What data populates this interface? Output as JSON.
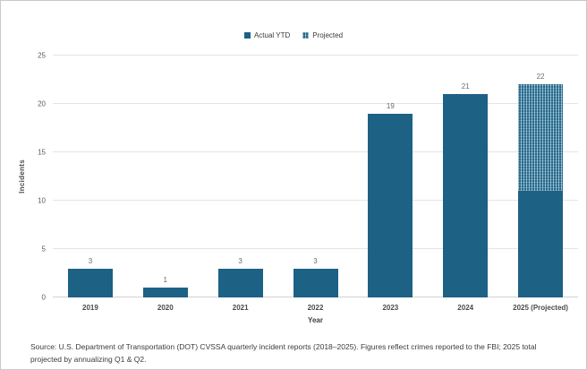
{
  "chart_data": {
    "type": "bar",
    "title": "",
    "xlabel": "Year",
    "ylabel": "Incidents",
    "ylim": [
      0,
      25
    ],
    "yticks": [
      0,
      5,
      10,
      15,
      20,
      25
    ],
    "grid": true,
    "legend_position": "top",
    "categories": [
      "2019",
      "2020",
      "2021",
      "2022",
      "2023",
      "2024",
      "2025 (Projected)"
    ],
    "series": [
      {
        "name": "Actual YTD",
        "style": "solid",
        "values": [
          3,
          1,
          3,
          3,
          19,
          21,
          11
        ]
      },
      {
        "name": "Projected",
        "style": "hatched",
        "values": [
          0,
          0,
          0,
          0,
          0,
          0,
          11
        ]
      }
    ],
    "bar_total_labels": [
      "3",
      "1",
      "3",
      "3",
      "19",
      "21",
      "22"
    ],
    "legend": [
      {
        "label": "Actual YTD",
        "style": "solid"
      },
      {
        "label": "Projected",
        "style": "hatched"
      }
    ],
    "colors": {
      "actual": "#1d6185",
      "projected_base": "#22688c",
      "gridline": "#e4e4e4",
      "axis_line": "#d2d2d2"
    }
  },
  "source_note": "Source: U.S. Department of Transportation (DOT) CVSSA quarterly incident reports (2018–2025). Figures reflect crimes reported to the FBI; 2025 total projected by annualizing Q1 & Q2."
}
